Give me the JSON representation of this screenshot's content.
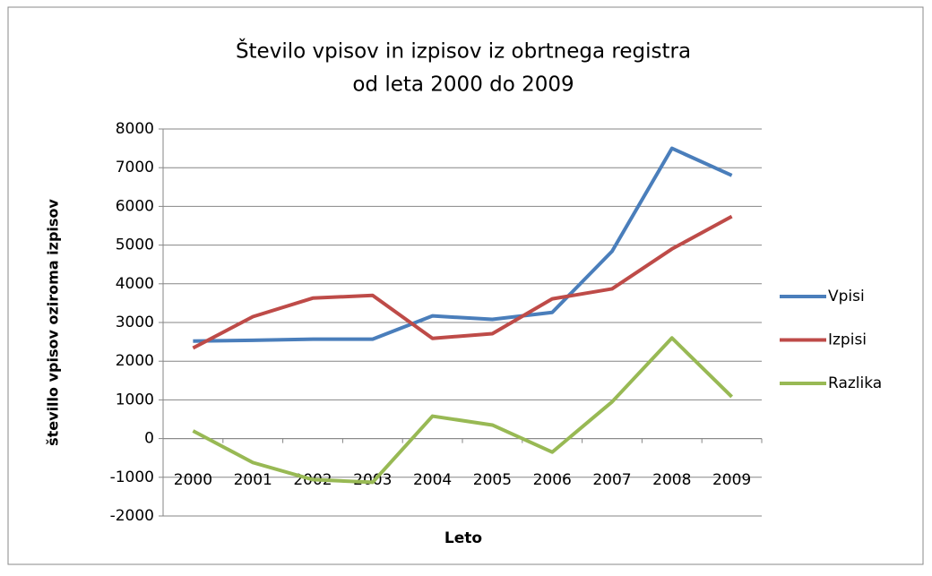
{
  "chart_data": {
    "type": "line",
    "title": [
      "Število vpisov in izpisov iz obrtnega registra",
      "od leta 2000 do 2009"
    ],
    "x_label": "Leto",
    "y_label": "števillo vpisov oziroma izpisov",
    "categories": [
      "2000",
      "2001",
      "2002",
      "2003",
      "2004",
      "2005",
      "2006",
      "2007",
      "2008",
      "2009"
    ],
    "series": [
      {
        "name": "Vpisi",
        "color": "#4a7ebb",
        "values": [
          2520,
          2540,
          2570,
          2570,
          3170,
          3080,
          3260,
          4840,
          7500,
          6800
        ]
      },
      {
        "name": "Izpisi",
        "color": "#be4b48",
        "values": [
          2340,
          3150,
          3630,
          3700,
          2590,
          2710,
          3610,
          3870,
          4900,
          5740
        ]
      },
      {
        "name": "Razlika",
        "color": "#98b954",
        "values": [
          200,
          -620,
          -1060,
          -1130,
          580,
          350,
          -350,
          950,
          2600,
          1080
        ]
      }
    ],
    "ylim": [
      -2000,
      8000
    ],
    "yticks": [
      -2000,
      -1000,
      0,
      1000,
      2000,
      3000,
      4000,
      5000,
      6000,
      7000,
      8000
    ],
    "grid": true,
    "legend": "right"
  }
}
